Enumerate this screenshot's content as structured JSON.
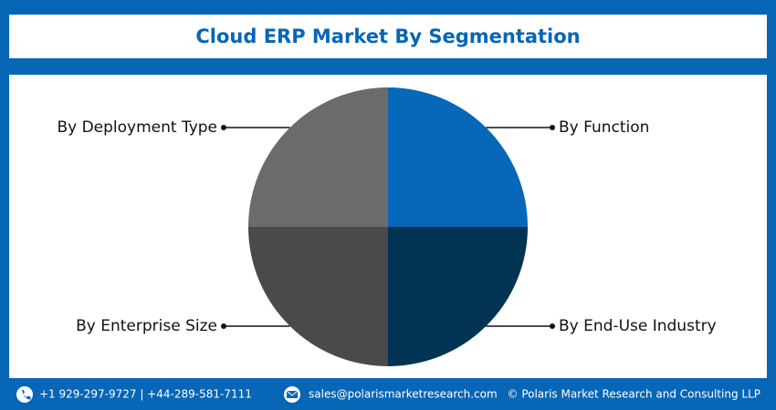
{
  "chart_data": {
    "type": "pie",
    "title": "Cloud ERP Market By Segmentation",
    "categories": [
      "By Function",
      "By End-Use Industry",
      "By Enterprise Size",
      "By Deployment Type"
    ],
    "values": [
      25,
      25,
      25,
      25
    ],
    "colors": [
      "#0767b8",
      "#003452",
      "#4a4a4a",
      "#6b6b6b"
    ]
  },
  "footer": {
    "phone": "+1 929-297-9727 | +44-289-581-7111",
    "email": "sales@polarismarketresearch.com",
    "copyright": "© Polaris Market Research and Consulting LLP"
  }
}
